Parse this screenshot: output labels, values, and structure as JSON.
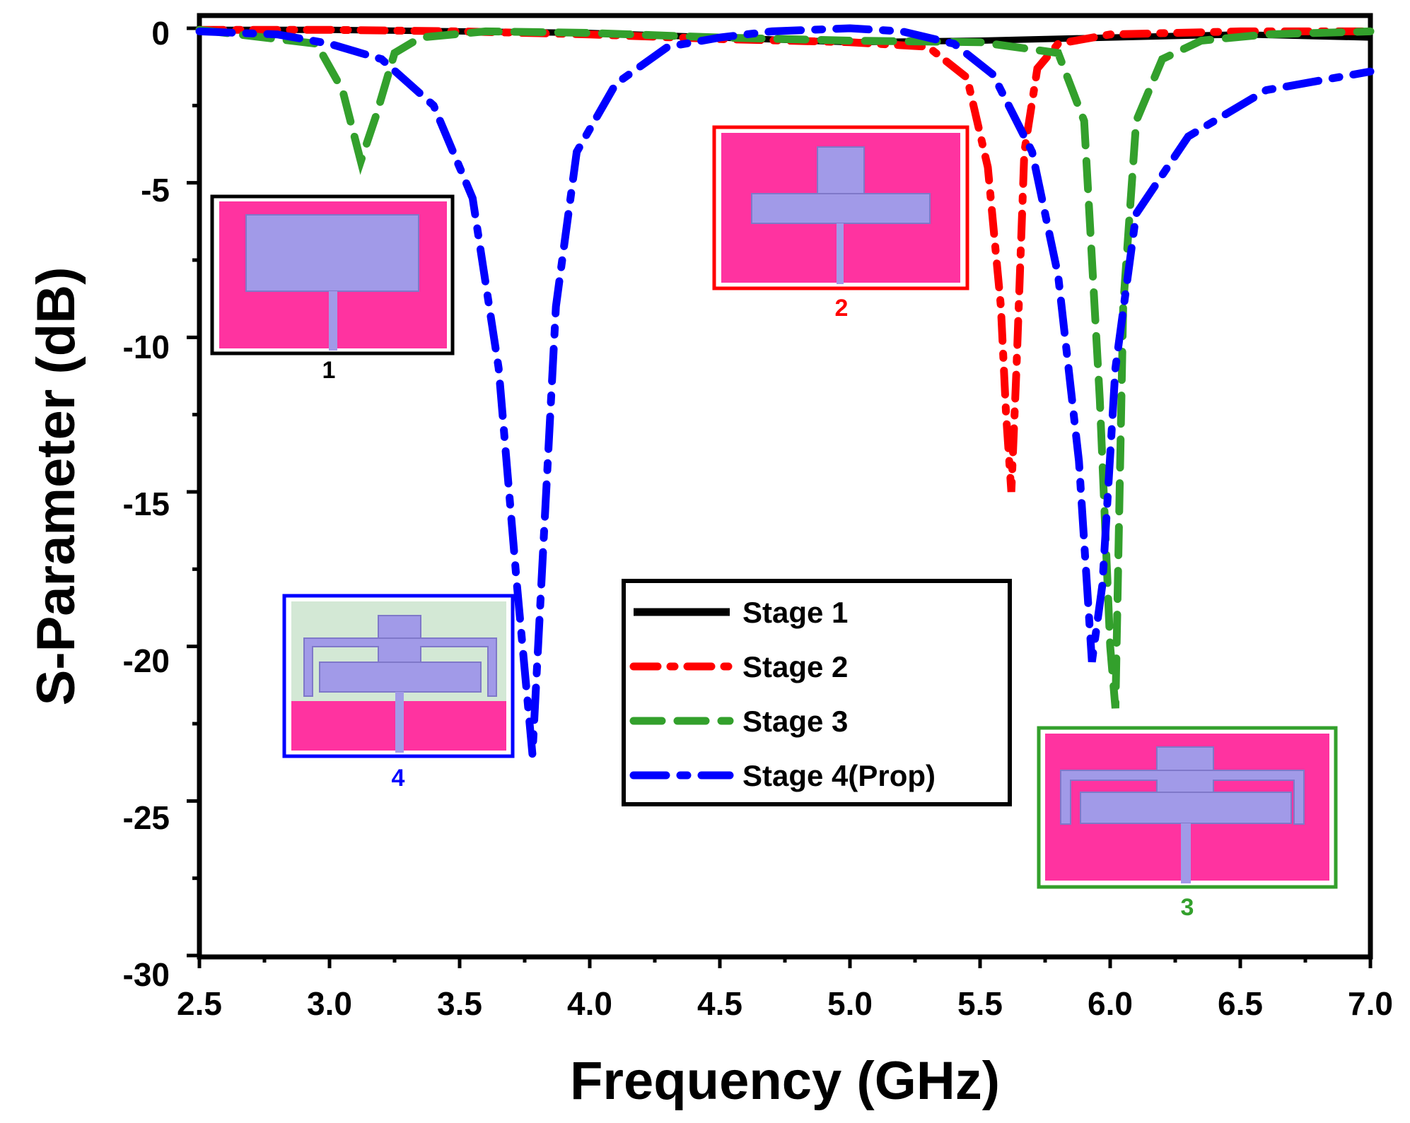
{
  "chart_data": {
    "type": "line",
    "title": "",
    "xlabel": "Frequency (GHz)",
    "ylabel": "S-Parameter (dB)",
    "xlim": [
      2.5,
      7.0
    ],
    "ylim": [
      -30,
      0
    ],
    "xticks": [
      "2.5",
      "3.0",
      "3.5",
      "4.0",
      "4.5",
      "5.0",
      "5.5",
      "6.0",
      "6.5",
      "7.0"
    ],
    "yticks": [
      "0",
      "-5",
      "-10",
      "-15",
      "-20",
      "-25",
      "-30"
    ],
    "grid": false,
    "legend_position": "center-right",
    "series": [
      {
        "name": "Stage 1",
        "color": "#000000",
        "style": "solid",
        "x": [
          2.5,
          3.0,
          3.5,
          4.0,
          4.5,
          5.0,
          5.5,
          6.0,
          6.5,
          7.0
        ],
        "y": [
          -0.05,
          -0.05,
          -0.1,
          -0.15,
          -0.3,
          -0.45,
          -0.4,
          -0.3,
          -0.2,
          -0.3
        ]
      },
      {
        "name": "Stage 2",
        "color": "#ff0000",
        "style": "dashdot",
        "x": [
          2.5,
          3.0,
          3.5,
          4.0,
          4.5,
          5.0,
          5.3,
          5.45,
          5.53,
          5.58,
          5.6,
          5.62,
          5.64,
          5.67,
          5.72,
          5.8,
          6.0,
          6.5,
          7.0
        ],
        "y": [
          -0.05,
          -0.05,
          -0.1,
          -0.2,
          -0.35,
          -0.45,
          -0.6,
          -1.6,
          -4.5,
          -9.0,
          -12.5,
          -15.0,
          -11.0,
          -4.0,
          -1.3,
          -0.5,
          -0.2,
          -0.1,
          -0.1
        ]
      },
      {
        "name": "Stage 3",
        "color": "#33a02c",
        "style": "dashed",
        "x": [
          2.5,
          2.95,
          3.05,
          3.12,
          3.18,
          3.25,
          3.35,
          3.6,
          4.0,
          4.5,
          5.0,
          5.5,
          5.8,
          5.9,
          5.96,
          6.0,
          6.02,
          6.05,
          6.1,
          6.2,
          6.35,
          6.6,
          7.0
        ],
        "y": [
          -0.05,
          -0.5,
          -2.0,
          -4.3,
          -2.8,
          -0.8,
          -0.3,
          -0.1,
          -0.15,
          -0.3,
          -0.4,
          -0.45,
          -0.8,
          -3.0,
          -12.0,
          -20.0,
          -22.0,
          -9.0,
          -3.0,
          -1.0,
          -0.4,
          -0.2,
          -0.1
        ]
      },
      {
        "name": "Stage 4(Prop)",
        "color": "#0000ff",
        "style": "dash-dot",
        "x": [
          2.5,
          2.8,
          3.0,
          3.2,
          3.4,
          3.55,
          3.65,
          3.72,
          3.78,
          3.82,
          3.87,
          3.95,
          4.1,
          4.3,
          4.5,
          4.7,
          5.0,
          5.2,
          5.4,
          5.55,
          5.7,
          5.8,
          5.88,
          5.93,
          5.97,
          6.02,
          6.1,
          6.3,
          6.6,
          7.0
        ],
        "y": [
          -0.1,
          -0.2,
          -0.5,
          -1.0,
          -2.5,
          -5.5,
          -11.0,
          -18.0,
          -23.5,
          -17.0,
          -9.0,
          -4.0,
          -1.8,
          -0.6,
          -0.3,
          -0.1,
          0.0,
          -0.1,
          -0.5,
          -1.5,
          -4.0,
          -8.0,
          -14.0,
          -20.5,
          -18.0,
          -11.0,
          -6.0,
          -3.5,
          -2.0,
          -1.4
        ]
      }
    ],
    "insets": [
      {
        "label": "1",
        "color": "#000000"
      },
      {
        "label": "2",
        "color": "#ff0000"
      },
      {
        "label": "3",
        "color": "#33a02c"
      },
      {
        "label": "4",
        "color": "#0000ff"
      }
    ]
  }
}
